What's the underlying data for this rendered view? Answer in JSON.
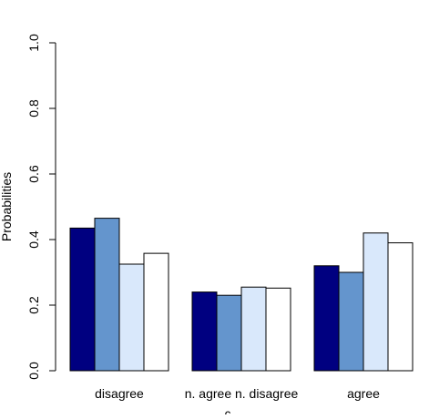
{
  "chart_data": {
    "type": "bar",
    "ylabel": "Probabilities",
    "xlabel_visible_fragment": "c",
    "categories": [
      "disagree",
      "n. agree n. disagree",
      "agree"
    ],
    "yticks": [
      "0.0",
      "0.2",
      "0.4",
      "0.6",
      "0.8",
      "1.0"
    ],
    "ylim": [
      0,
      1
    ],
    "grid": false,
    "legend": "none",
    "series": [
      {
        "color": "#000080",
        "values": [
          0.435,
          0.24,
          0.32
        ]
      },
      {
        "color": "#6495cd",
        "values": [
          0.465,
          0.23,
          0.3
        ]
      },
      {
        "color": "#d9e8fb",
        "values": [
          0.325,
          0.255,
          0.42
        ]
      },
      {
        "color": "#ffffff",
        "values": [
          0.358,
          0.252,
          0.39
        ]
      }
    ]
  }
}
